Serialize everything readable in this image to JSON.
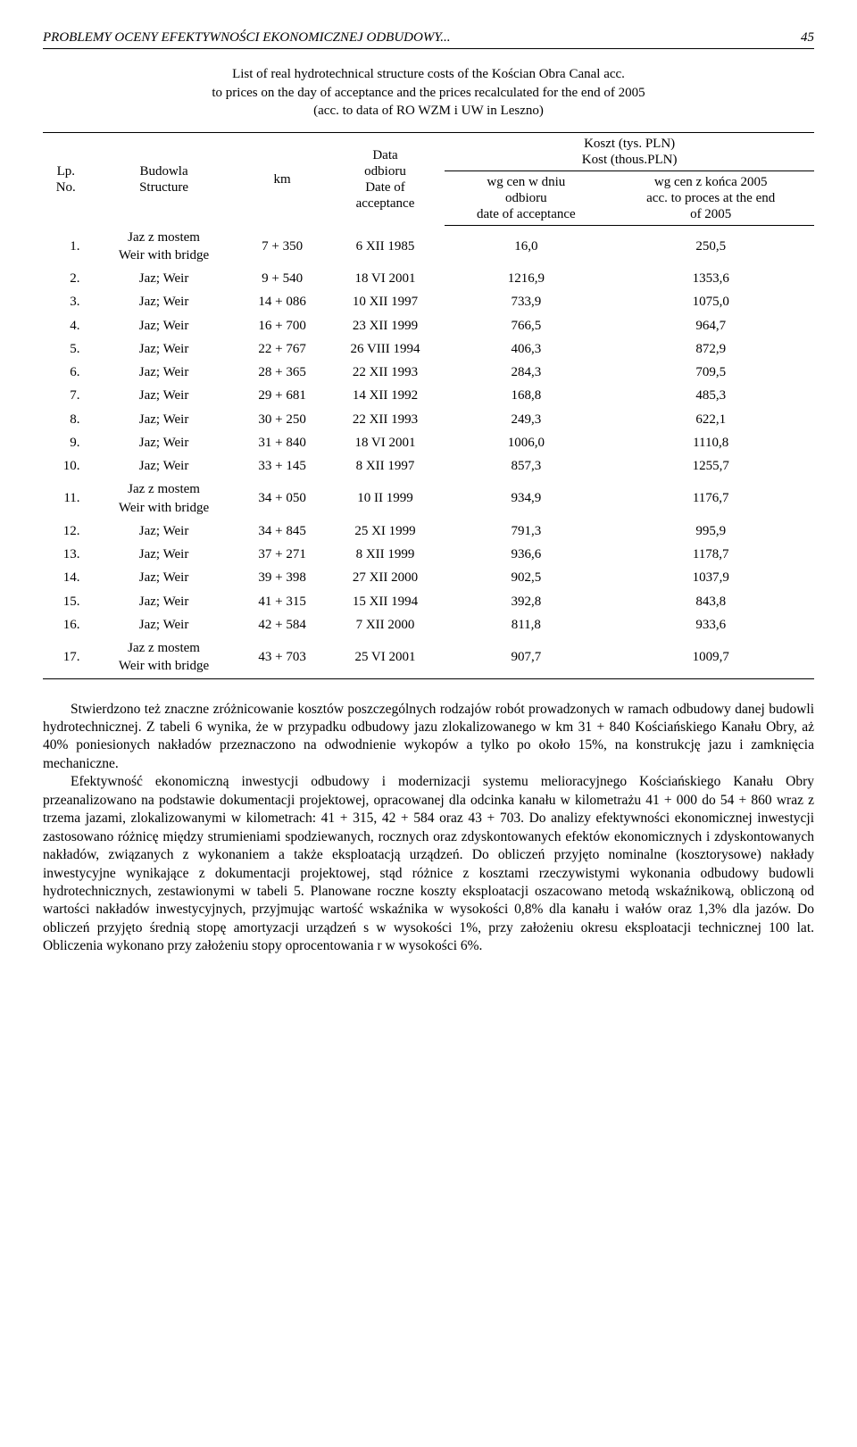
{
  "header": {
    "title": "PROBLEMY OCENY EFEKTYWNOŚCI EKONOMICZNEJ ODBUDOWY...",
    "page_number": "45"
  },
  "table_caption": {
    "line1": "List of real hydrotechnical structure costs of the Kościan Obra Canal acc.",
    "line2": "to prices on the day of acceptance and the prices recalculated for the end of 2005",
    "line3": "(acc. to data of RO WZM i UW in Leszno)"
  },
  "table": {
    "header": {
      "col1": {
        "pl": "Lp.",
        "en": "No."
      },
      "col2": {
        "pl": "Budowla",
        "en": "Structure"
      },
      "col3": "km",
      "col4": {
        "pl": "Data",
        "pl2": "odbioru",
        "en": "Date of",
        "en2": "acceptance"
      },
      "col5": {
        "pl": "Koszt (tys. PLN)",
        "en": "Kost (thous.PLN)"
      },
      "col5a": {
        "pl": "wg cen w dniu",
        "pl2": "odbioru",
        "en": "date of acceptance"
      },
      "col5b": {
        "pl": "wg cen z końca 2005",
        "en": "acc. to proces at the end",
        "en2": "of 2005"
      }
    },
    "rows": [
      {
        "n": "1.",
        "structure": "Jaz z mostem",
        "structure_en": "Weir with bridge",
        "km": "7 + 350",
        "date": "6 XII 1985",
        "v1": "16,0",
        "v2": "250,5"
      },
      {
        "n": "2.",
        "structure": "Jaz; Weir",
        "km": "9 + 540",
        "date": "18 VI 2001",
        "v1": "1216,9",
        "v2": "1353,6"
      },
      {
        "n": "3.",
        "structure": "Jaz; Weir",
        "km": "14 + 086",
        "date": "10 XII 1997",
        "v1": "733,9",
        "v2": "1075,0"
      },
      {
        "n": "4.",
        "structure": "Jaz; Weir",
        "km": "16 + 700",
        "date": "23 XII 1999",
        "v1": "766,5",
        "v2": "964,7"
      },
      {
        "n": "5.",
        "structure": "Jaz; Weir",
        "km": "22 + 767",
        "date": "26 VIII 1994",
        "v1": "406,3",
        "v2": "872,9"
      },
      {
        "n": "6.",
        "structure": "Jaz; Weir",
        "km": "28 + 365",
        "date": "22 XII 1993",
        "v1": "284,3",
        "v2": "709,5"
      },
      {
        "n": "7.",
        "structure": "Jaz; Weir",
        "km": "29 + 681",
        "date": "14 XII 1992",
        "v1": "168,8",
        "v2": "485,3"
      },
      {
        "n": "8.",
        "structure": "Jaz; Weir",
        "km": "30 + 250",
        "date": "22 XII 1993",
        "v1": "249,3",
        "v2": "622,1"
      },
      {
        "n": "9.",
        "structure": "Jaz; Weir",
        "km": "31 + 840",
        "date": "18 VI 2001",
        "v1": "1006,0",
        "v2": "1110,8"
      },
      {
        "n": "10.",
        "structure": "Jaz; Weir",
        "km": "33 + 145",
        "date": "8 XII 1997",
        "v1": "857,3",
        "v2": "1255,7"
      },
      {
        "n": "11.",
        "structure": "Jaz z mostem",
        "structure_en": "Weir with bridge",
        "km": "34 + 050",
        "date": "10 II 1999",
        "v1": "934,9",
        "v2": "1176,7"
      },
      {
        "n": "12.",
        "structure": "Jaz; Weir",
        "km": "34 + 845",
        "date": "25 XI 1999",
        "v1": "791,3",
        "v2": "995,9"
      },
      {
        "n": "13.",
        "structure": "Jaz; Weir",
        "km": "37 + 271",
        "date": "8 XII 1999",
        "v1": "936,6",
        "v2": "1178,7"
      },
      {
        "n": "14.",
        "structure": "Jaz; Weir",
        "km": "39 + 398",
        "date": "27 XII 2000",
        "v1": "902,5",
        "v2": "1037,9"
      },
      {
        "n": "15.",
        "structure": "Jaz; Weir",
        "km": "41 + 315",
        "date": "15 XII 1994",
        "v1": "392,8",
        "v2": "843,8"
      },
      {
        "n": "16.",
        "structure": "Jaz; Weir",
        "km": "42 + 584",
        "date": "7 XII 2000",
        "v1": "811,8",
        "v2": "933,6"
      },
      {
        "n": "17.",
        "structure": "Jaz z mostem",
        "structure_en": "Weir with bridge",
        "km": "43 + 703",
        "date": "25 VI 2001",
        "v1": "907,7",
        "v2": "1009,7"
      }
    ]
  },
  "paragraphs": {
    "p1": "Stwierdzono też znaczne zróżnicowanie kosztów poszczególnych rodzajów robót prowadzonych w ramach odbudowy danej budowli hydrotechnicznej. Z tabeli 6 wynika, że w przypadku odbudowy jazu zlokalizowanego w km 31 + 840 Kościańskiego Kanału Obry, aż 40% poniesionych nakładów przeznaczono na odwodnienie wykopów a tylko po około 15%, na konstrukcję jazu i zamknięcia mechaniczne.",
    "p2": "Efektywność ekonomiczną inwestycji odbudowy i modernizacji systemu melioracyjnego Kościańskiego Kanału Obry przeanalizowano na podstawie dokumentacji projektowej, opracowanej dla odcinka kanału w kilometrażu 41 + 000 do 54 + 860 wraz z trzema jazami, zlokalizowanymi w kilometrach: 41 + 315, 42 + 584 oraz 43 + 703. Do analizy efektywności ekonomicznej inwestycji zastosowano różnicę między strumieniami spodziewanych, rocznych oraz zdyskontowanych efektów ekonomicznych i zdyskontowanych nakładów, związanych z wykonaniem a także eksploatacją urządzeń. Do obliczeń przyjęto nominalne (kosztorysowe) nakłady inwestycyjne wynikające z dokumentacji projektowej, stąd różnice z kosztami rzeczywistymi wykonania odbudowy budowli hydrotechnicznych, zestawionymi w tabeli 5. Planowane roczne koszty eksploatacji oszacowano metodą wskaźnikową, obliczoną od wartości nakładów inwestycyjnych, przyjmując wartość wskaźnika w wysokości 0,8% dla kanału i wałów oraz 1,3% dla jazów. Do obliczeń przyjęto średnią stopę amortyzacji urządzeń s w wysokości 1%, przy założeniu okresu eksploatacji technicznej 100 lat. Obliczenia wykonano przy założeniu stopy oprocentowania r w wysokości 6%."
  }
}
